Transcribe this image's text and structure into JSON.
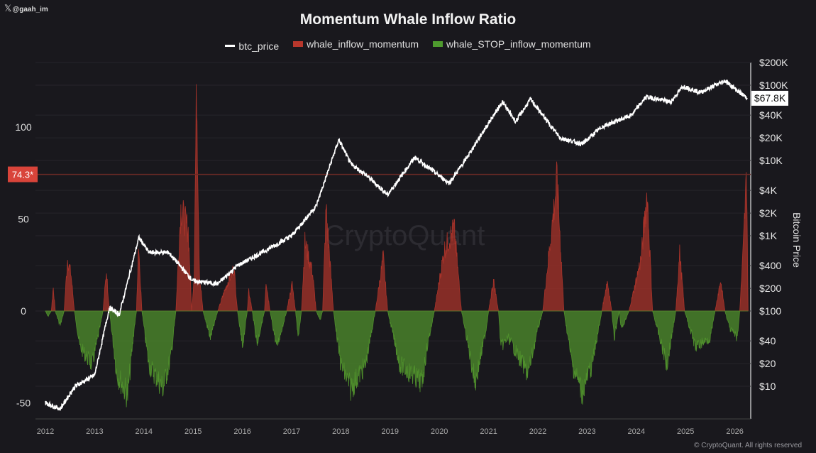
{
  "handle": {
    "icon": "x-logo-icon",
    "text": "@gaah_im"
  },
  "footer": "© CryptoQuant. All rights reserved",
  "watermark": "CryptoQuant",
  "chart_data": {
    "type": "line+area",
    "title": "Momentum Whale Inflow Ratio",
    "legend_position": "top",
    "legend": [
      {
        "name": "btc_price",
        "color": "#ffffff"
      },
      {
        "name": "whale_inflow_momentum",
        "color": "#c0392b"
      },
      {
        "name": "whale_STOP_inflow_momentum",
        "color": "#4e9a2e"
      }
    ],
    "x_ticks": [
      "2012",
      "2013",
      "2014",
      "2015",
      "2016",
      "2017",
      "2018",
      "2019",
      "2020",
      "2021",
      "2022",
      "2023",
      "2024",
      "2025",
      "2026"
    ],
    "xlim": [
      2011.8,
      2026.35
    ],
    "left_axis": {
      "ticks": [
        100,
        50,
        0,
        -50
      ],
      "ylim": [
        -57,
        137
      ]
    },
    "right_axis": {
      "label": "Bitcoin Price",
      "scale": "log",
      "ticks": [
        "$200K",
        "$100K",
        "$40K",
        "$20K",
        "$10K",
        "$4K",
        "$2K",
        "$1K",
        "$400",
        "$200",
        "$100",
        "$40",
        "$20",
        "$10"
      ],
      "tick_values": [
        200000,
        100000,
        40000,
        20000,
        10000,
        4000,
        2000,
        1000,
        400,
        200,
        100,
        40,
        20,
        10
      ],
      "ylim": [
        3,
        200000
      ]
    },
    "current_price_label": "$67.8K",
    "threshold": {
      "value": 74.3,
      "label": "74.3*",
      "color": "#d9443a"
    },
    "btc_price": [
      [
        2012.0,
        6
      ],
      [
        2012.3,
        5
      ],
      [
        2012.6,
        10
      ],
      [
        2013.0,
        14
      ],
      [
        2013.3,
        110
      ],
      [
        2013.5,
        90
      ],
      [
        2013.9,
        950
      ],
      [
        2014.1,
        600
      ],
      [
        2014.5,
        600
      ],
      [
        2015.0,
        250
      ],
      [
        2015.5,
        230
      ],
      [
        2015.9,
        400
      ],
      [
        2016.5,
        650
      ],
      [
        2017.0,
        1000
      ],
      [
        2017.5,
        2500
      ],
      [
        2017.96,
        19000
      ],
      [
        2018.2,
        9000
      ],
      [
        2018.5,
        6500
      ],
      [
        2018.95,
        3500
      ],
      [
        2019.5,
        11000
      ],
      [
        2020.2,
        5000
      ],
      [
        2020.5,
        9500
      ],
      [
        2020.95,
        28000
      ],
      [
        2021.28,
        60000
      ],
      [
        2021.55,
        33000
      ],
      [
        2021.85,
        65000
      ],
      [
        2022.45,
        20000
      ],
      [
        2022.9,
        16500
      ],
      [
        2023.3,
        28000
      ],
      [
        2023.9,
        40000
      ],
      [
        2024.2,
        70000
      ],
      [
        2024.7,
        60000
      ],
      [
        2024.95,
        97000
      ],
      [
        2025.3,
        80000
      ],
      [
        2025.8,
        115000
      ],
      [
        2026.1,
        80000
      ],
      [
        2026.25,
        67800
      ]
    ],
    "momentum": [
      [
        2012.0,
        0
      ],
      [
        2012.05,
        -3
      ],
      [
        2012.12,
        0
      ],
      [
        2012.16,
        13
      ],
      [
        2012.2,
        0
      ],
      [
        2012.3,
        -8
      ],
      [
        2012.38,
        0
      ],
      [
        2012.45,
        29
      ],
      [
        2012.52,
        20
      ],
      [
        2012.59,
        0
      ],
      [
        2012.7,
        -20
      ],
      [
        2012.95,
        -30
      ],
      [
        2013.1,
        -10
      ],
      [
        2013.17,
        0
      ],
      [
        2013.24,
        22
      ],
      [
        2013.3,
        0
      ],
      [
        2013.45,
        -35
      ],
      [
        2013.67,
        -47
      ],
      [
        2013.8,
        -10
      ],
      [
        2013.85,
        0
      ],
      [
        2013.89,
        38
      ],
      [
        2013.96,
        0
      ],
      [
        2014.1,
        -30
      ],
      [
        2014.39,
        -43
      ],
      [
        2014.55,
        -25
      ],
      [
        2014.65,
        0
      ],
      [
        2014.75,
        57
      ],
      [
        2014.9,
        45
      ],
      [
        2014.97,
        0
      ],
      [
        2015.02,
        20
      ],
      [
        2015.07,
        127
      ],
      [
        2015.13,
        20
      ],
      [
        2015.2,
        0
      ],
      [
        2015.35,
        -15
      ],
      [
        2015.5,
        0
      ],
      [
        2015.6,
        8
      ],
      [
        2015.69,
        15
      ],
      [
        2015.83,
        24
      ],
      [
        2015.9,
        0
      ],
      [
        2016.0,
        -20
      ],
      [
        2016.1,
        0
      ],
      [
        2016.13,
        11
      ],
      [
        2016.2,
        0
      ],
      [
        2016.3,
        -18
      ],
      [
        2016.45,
        0
      ],
      [
        2016.48,
        17
      ],
      [
        2016.56,
        0
      ],
      [
        2016.7,
        -20
      ],
      [
        2016.9,
        0
      ],
      [
        2017.01,
        15
      ],
      [
        2017.08,
        0
      ],
      [
        2017.13,
        -15
      ],
      [
        2017.2,
        0
      ],
      [
        2017.27,
        38
      ],
      [
        2017.42,
        22
      ],
      [
        2017.5,
        0
      ],
      [
        2017.58,
        -5
      ],
      [
        2017.63,
        0
      ],
      [
        2017.7,
        57
      ],
      [
        2017.85,
        0
      ],
      [
        2018.0,
        -30
      ],
      [
        2018.2,
        -43
      ],
      [
        2018.5,
        -30
      ],
      [
        2018.7,
        0
      ],
      [
        2018.86,
        30
      ],
      [
        2018.95,
        0
      ],
      [
        2019.2,
        -30
      ],
      [
        2019.65,
        -40
      ],
      [
        2019.75,
        -20
      ],
      [
        2019.9,
        0
      ],
      [
        2020.1,
        34
      ],
      [
        2020.3,
        46
      ],
      [
        2020.45,
        0
      ],
      [
        2020.73,
        -40
      ],
      [
        2020.95,
        -10
      ],
      [
        2021.0,
        0
      ],
      [
        2021.1,
        17
      ],
      [
        2021.2,
        0
      ],
      [
        2021.25,
        -20
      ],
      [
        2021.4,
        -15
      ],
      [
        2021.8,
        -35
      ],
      [
        2022.0,
        -10
      ],
      [
        2022.1,
        0
      ],
      [
        2022.39,
        73
      ],
      [
        2022.53,
        0
      ],
      [
        2022.7,
        -30
      ],
      [
        2022.9,
        -45
      ],
      [
        2023.1,
        -30
      ],
      [
        2023.3,
        0
      ],
      [
        2023.41,
        17
      ],
      [
        2023.5,
        0
      ],
      [
        2023.55,
        -15
      ],
      [
        2023.65,
        0
      ],
      [
        2023.7,
        -10
      ],
      [
        2023.85,
        0
      ],
      [
        2023.98,
        15
      ],
      [
        2024.1,
        30
      ],
      [
        2024.22,
        66
      ],
      [
        2024.33,
        0
      ],
      [
        2024.62,
        -30
      ],
      [
        2024.8,
        0
      ],
      [
        2024.88,
        32
      ],
      [
        2024.98,
        0
      ],
      [
        2025.2,
        -20
      ],
      [
        2025.5,
        -15
      ],
      [
        2025.6,
        0
      ],
      [
        2025.71,
        17
      ],
      [
        2025.8,
        0
      ],
      [
        2025.9,
        -10
      ],
      [
        2026.05,
        -15
      ],
      [
        2026.1,
        0
      ],
      [
        2026.17,
        34
      ],
      [
        2026.24,
        76
      ],
      [
        2026.27,
        0
      ]
    ]
  }
}
